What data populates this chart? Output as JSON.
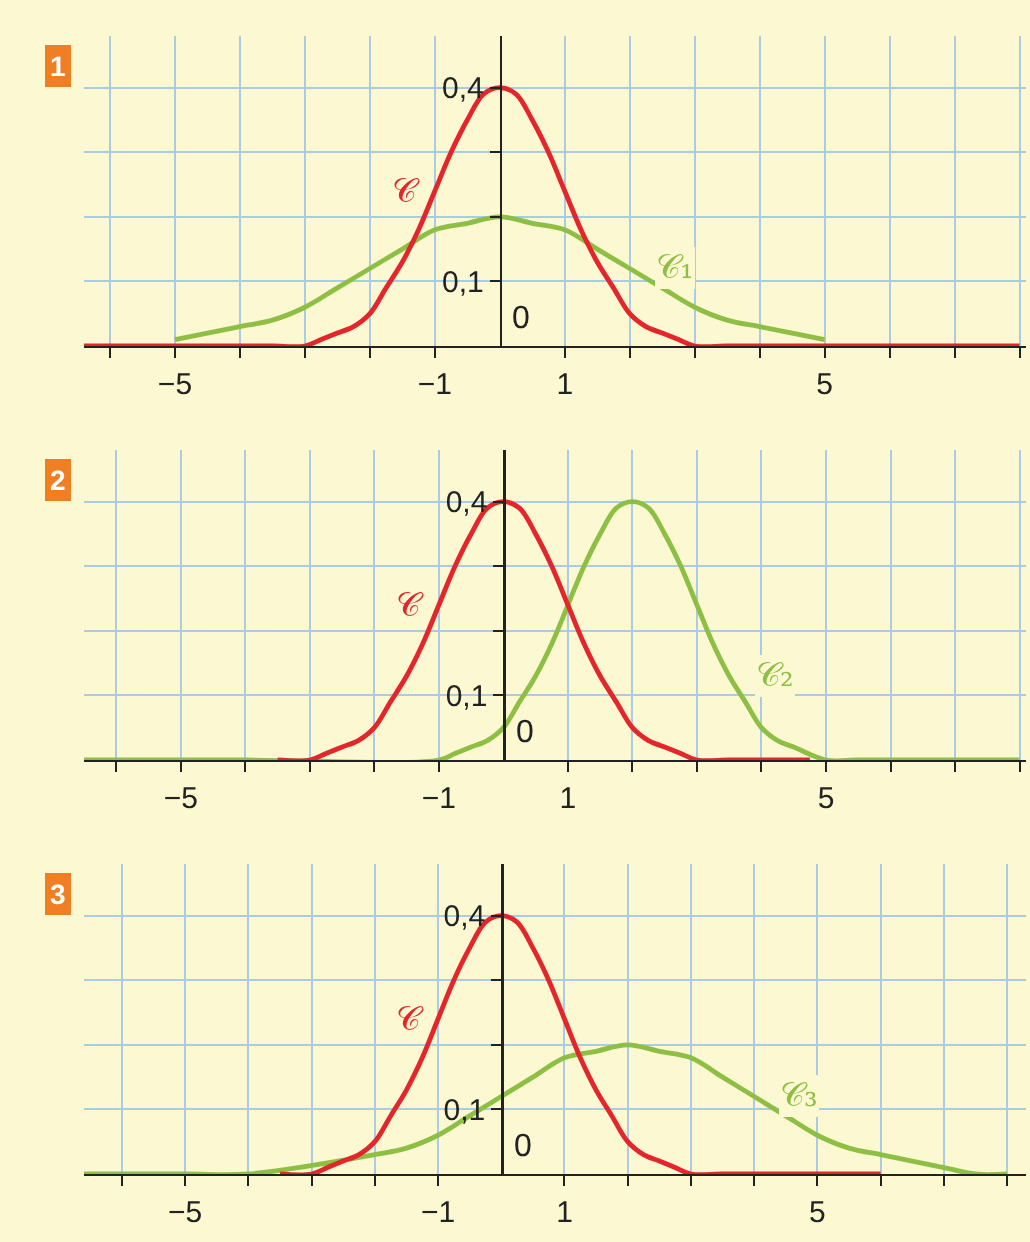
{
  "chart_data": [
    {
      "type": "line",
      "title": "1",
      "xlim": [
        -6.4,
        8.1
      ],
      "ylim": [
        0,
        0.48
      ],
      "xticks": [
        {
          "value": -6,
          "label": null
        },
        {
          "value": -5,
          "label": "−5"
        },
        {
          "value": -4,
          "label": null
        },
        {
          "value": -3,
          "label": null
        },
        {
          "value": -2,
          "label": null
        },
        {
          "value": -1,
          "label": "−1"
        },
        {
          "value": 1,
          "label": "1"
        },
        {
          "value": 2,
          "label": null
        },
        {
          "value": 3,
          "label": null
        },
        {
          "value": 4,
          "label": null
        },
        {
          "value": 5,
          "label": "5"
        },
        {
          "value": 6,
          "label": null
        },
        {
          "value": 7,
          "label": null
        },
        {
          "value": 8,
          "label": null
        }
      ],
      "yticks": [
        {
          "value": 0.1,
          "label": "0,1"
        },
        {
          "value": 0.2,
          "label": null
        },
        {
          "value": 0.3,
          "label": null
        },
        {
          "value": 0.4,
          "label": "0,4"
        }
      ],
      "grid": true,
      "annotations": [
        "0"
      ],
      "series": [
        {
          "name": "𝒞",
          "color": "#e3262b",
          "x": [
            -6.4,
            -5,
            -4,
            -3.5,
            -3,
            -2.75,
            -2.5,
            -2.25,
            -2,
            -1.75,
            -1.5,
            -1.25,
            -1,
            -0.75,
            -0.5,
            -0.25,
            0,
            0.25,
            0.5,
            0.75,
            1,
            1.25,
            1.5,
            1.75,
            2,
            2.25,
            2.5,
            2.75,
            3,
            3.5,
            4,
            5,
            6,
            7,
            8
          ],
          "values": [
            0,
            0,
            0,
            0,
            0,
            0.01,
            0.02,
            0.03,
            0.05,
            0.09,
            0.13,
            0.18,
            0.24,
            0.3,
            0.35,
            0.39,
            0.4,
            0.39,
            0.35,
            0.3,
            0.24,
            0.18,
            0.13,
            0.09,
            0.05,
            0.03,
            0.02,
            0.01,
            0,
            0,
            0,
            0,
            0,
            0,
            0
          ]
        },
        {
          "name": "𝒞₁",
          "color": "#8ebf45",
          "x": [
            -5,
            -4.5,
            -4,
            -3.5,
            -3,
            -2.5,
            -2,
            -1.5,
            -1,
            -0.5,
            0,
            0.5,
            1,
            1.5,
            2,
            2.5,
            3,
            3.5,
            4,
            4.5,
            5
          ],
          "values": [
            0.01,
            0.02,
            0.03,
            0.04,
            0.06,
            0.09,
            0.12,
            0.15,
            0.18,
            0.19,
            0.2,
            0.19,
            0.18,
            0.15,
            0.12,
            0.09,
            0.06,
            0.04,
            0.03,
            0.02,
            0.01
          ]
        }
      ]
    },
    {
      "type": "line",
      "title": "2",
      "xlim": [
        -6.5,
        8.1
      ],
      "ylim": [
        0,
        0.48
      ],
      "xticks": [
        {
          "value": -6,
          "label": null
        },
        {
          "value": -5,
          "label": "−5"
        },
        {
          "value": -4,
          "label": null
        },
        {
          "value": -3,
          "label": null
        },
        {
          "value": -2,
          "label": null
        },
        {
          "value": -1,
          "label": "−1"
        },
        {
          "value": 1,
          "label": "1"
        },
        {
          "value": 2,
          "label": null
        },
        {
          "value": 3,
          "label": null
        },
        {
          "value": 4,
          "label": null
        },
        {
          "value": 5,
          "label": "5"
        },
        {
          "value": 6,
          "label": null
        },
        {
          "value": 7,
          "label": null
        },
        {
          "value": 8,
          "label": null
        }
      ],
      "yticks": [
        {
          "value": 0.1,
          "label": "0,1"
        },
        {
          "value": 0.2,
          "label": null
        },
        {
          "value": 0.3,
          "label": null
        },
        {
          "value": 0.4,
          "label": "0,4"
        }
      ],
      "grid": true,
      "annotations": [
        "0"
      ],
      "series": [
        {
          "name": "𝒞",
          "color": "#e3262b",
          "x": [
            -3.5,
            -3,
            -2.75,
            -2.5,
            -2.25,
            -2,
            -1.75,
            -1.5,
            -1.25,
            -1,
            -0.75,
            -0.5,
            -0.25,
            0,
            0.25,
            0.5,
            0.75,
            1,
            1.25,
            1.5,
            1.75,
            2,
            2.25,
            2.5,
            2.75,
            3,
            3.5,
            4,
            4.75
          ],
          "values": [
            0,
            0,
            0.01,
            0.02,
            0.03,
            0.05,
            0.09,
            0.13,
            0.18,
            0.24,
            0.3,
            0.35,
            0.39,
            0.4,
            0.39,
            0.35,
            0.3,
            0.24,
            0.18,
            0.13,
            0.09,
            0.05,
            0.03,
            0.02,
            0.01,
            0,
            0,
            0,
            0
          ]
        },
        {
          "name": "𝒞₂",
          "color": "#8ebf45",
          "x": [
            -6.5,
            -4,
            -1,
            -0.75,
            -0.5,
            -0.25,
            0,
            0.25,
            0.5,
            0.75,
            1.25,
            1.5,
            1.75,
            2,
            2.25,
            2.5,
            2.75,
            3,
            3.25,
            3.5,
            3.75,
            4,
            4.25,
            4.5,
            5,
            5.5,
            6,
            7,
            8
          ],
          "values": [
            0,
            0,
            0,
            0.01,
            0.02,
            0.03,
            0.05,
            0.09,
            0.13,
            0.18,
            0.3,
            0.35,
            0.39,
            0.4,
            0.39,
            0.35,
            0.3,
            0.24,
            0.18,
            0.13,
            0.09,
            0.05,
            0.03,
            0.02,
            0,
            0,
            0,
            0,
            0
          ]
        }
      ]
    },
    {
      "type": "line",
      "title": "3",
      "xlim": [
        -6.6,
        8.3
      ],
      "ylim": [
        0,
        0.48
      ],
      "xticks": [
        {
          "value": -6,
          "label": null
        },
        {
          "value": -5,
          "label": "−5"
        },
        {
          "value": -4,
          "label": null
        },
        {
          "value": -3,
          "label": null
        },
        {
          "value": -2,
          "label": null
        },
        {
          "value": -1,
          "label": "−1"
        },
        {
          "value": 1,
          "label": "1"
        },
        {
          "value": 2,
          "label": null
        },
        {
          "value": 3,
          "label": null
        },
        {
          "value": 4,
          "label": null
        },
        {
          "value": 5,
          "label": "5"
        },
        {
          "value": 6,
          "label": null
        },
        {
          "value": 7,
          "label": null
        },
        {
          "value": 8,
          "label": null
        }
      ],
      "yticks": [
        {
          "value": 0.1,
          "label": "0,1"
        },
        {
          "value": 0.2,
          "label": null
        },
        {
          "value": 0.3,
          "label": null
        },
        {
          "value": 0.4,
          "label": "0,4"
        }
      ],
      "grid": true,
      "annotations": [
        "0"
      ],
      "series": [
        {
          "name": "𝒞",
          "color": "#e3262b",
          "x": [
            -3.5,
            -3,
            -2.75,
            -2.5,
            -2.25,
            -2,
            -1.75,
            -1.5,
            -1.25,
            -1,
            -0.75,
            -0.5,
            -0.25,
            0,
            0.25,
            0.5,
            0.75,
            1,
            1.25,
            1.5,
            1.75,
            2,
            2.25,
            2.5,
            2.75,
            3,
            3.5,
            4,
            5,
            6
          ],
          "values": [
            0,
            0,
            0.01,
            0.02,
            0.03,
            0.05,
            0.09,
            0.13,
            0.18,
            0.24,
            0.3,
            0.35,
            0.39,
            0.4,
            0.39,
            0.35,
            0.3,
            0.24,
            0.18,
            0.13,
            0.09,
            0.05,
            0.03,
            0.02,
            0.01,
            0,
            0,
            0,
            0,
            0
          ]
        },
        {
          "name": "𝒞₃",
          "color": "#8ebf45",
          "x": [
            -6.6,
            -5,
            -4,
            -2,
            -1.5,
            -1,
            -0.5,
            0,
            0.5,
            1,
            1.5,
            2,
            2.5,
            3,
            3.5,
            4,
            4.5,
            5,
            5.5,
            6,
            6.5,
            7,
            7.5,
            8
          ],
          "values": [
            0,
            0,
            0,
            0.03,
            0.04,
            0.06,
            0.09,
            0.12,
            0.15,
            0.18,
            0.19,
            0.2,
            0.19,
            0.18,
            0.15,
            0.12,
            0.09,
            0.06,
            0.04,
            0.03,
            0.02,
            0.01,
            0,
            0
          ]
        }
      ]
    }
  ]
}
